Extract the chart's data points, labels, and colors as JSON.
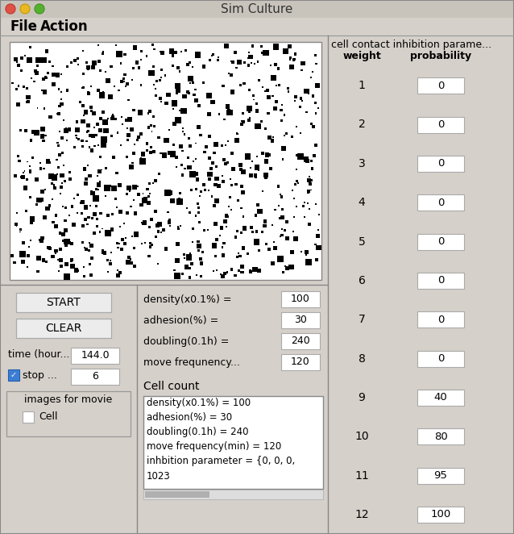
{
  "title": "Sim Culture",
  "bg_color": "#d5d0c9",
  "title_bar_color": "#c8c4bc",
  "white": "#ffffff",
  "dark": "#000000",
  "fig_w": 6.38,
  "fig_h": 6.62,
  "menu_items": [
    "File",
    "Action"
  ],
  "buttons": [
    "START",
    "CLEAR"
  ],
  "params_labels": [
    "density(x0.1%) =",
    "adhesion(%) =",
    "doubling(0.1h) =",
    "move frequnency..."
  ],
  "params_values": [
    "100",
    "30",
    "240",
    "120"
  ],
  "time_label": "time (hour...",
  "time_value": "144.0",
  "stop_label": "stop ...",
  "stop_value": "6",
  "movie_label": "images for movie",
  "cell_label": "Cell",
  "cell_count_label": "Cell count",
  "text_box_content": "density(x0.1%) = 100\nadhesion(%) = 30\ndoubling(0.1h) = 240\nmove frequency(min) = 120\ninhbition parameter = {0, 0, 0,\n1023",
  "inhibition_header": "cell contact inhibition parame...",
  "weight_header": "weight",
  "prob_header": "probability",
  "weights": [
    1,
    2,
    3,
    4,
    5,
    6,
    7,
    8,
    9,
    10,
    11,
    12
  ],
  "probabilities": [
    0,
    0,
    0,
    0,
    0,
    0,
    0,
    0,
    40,
    80,
    95,
    100
  ],
  "macos_red": "#e05044",
  "macos_yellow": "#e8b820",
  "macos_green": "#56b030",
  "border_color": "#a0a0a0",
  "inner_border": "#b0b0b0"
}
